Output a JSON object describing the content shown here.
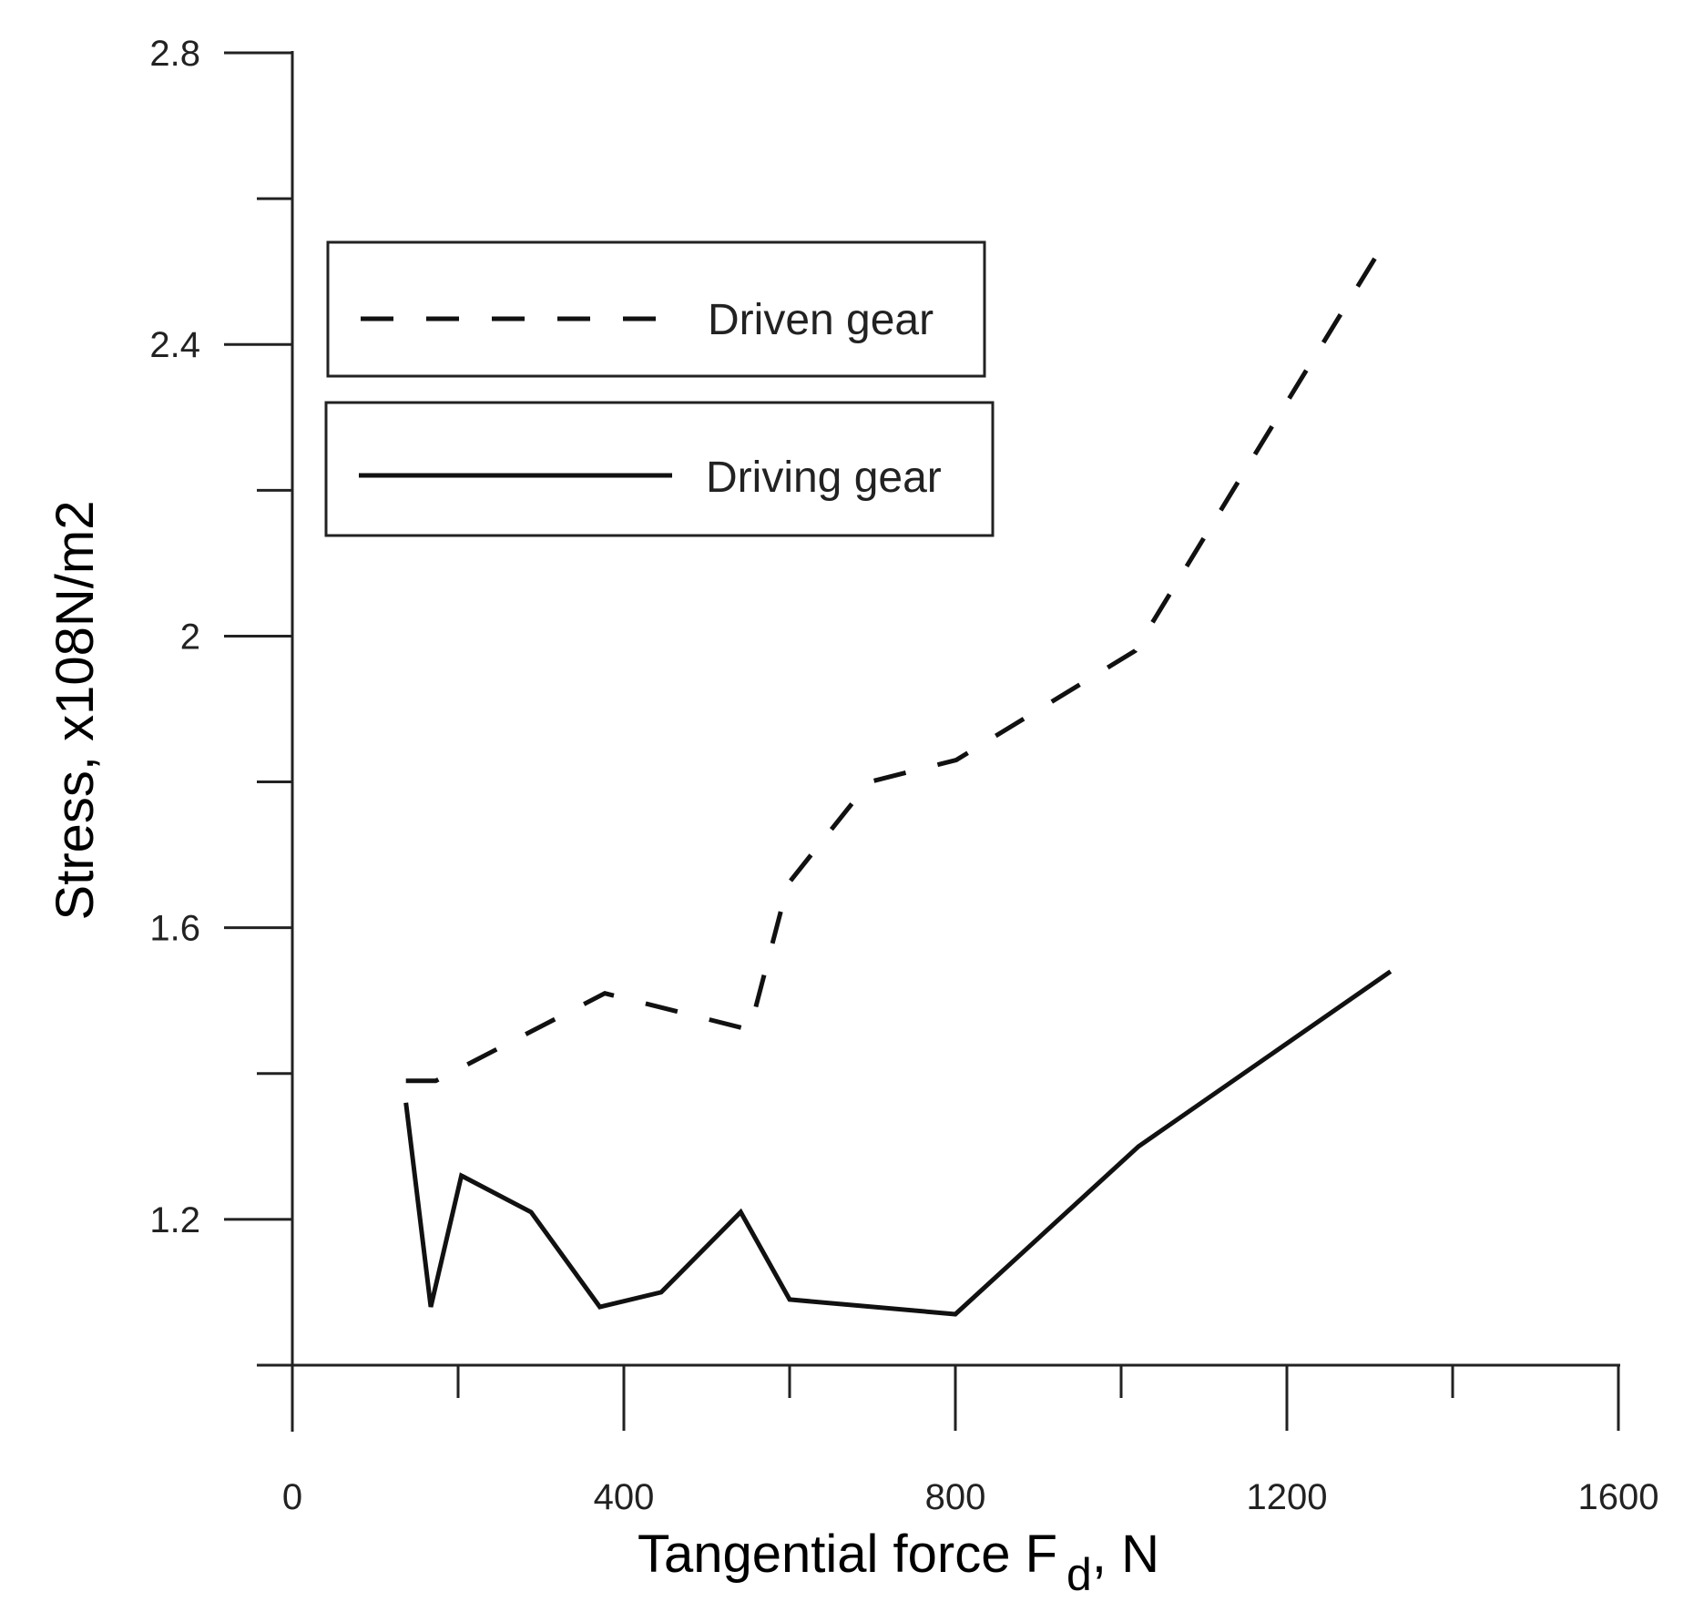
{
  "chart_data": {
    "type": "line",
    "title": "",
    "xlabel": "Tangential force F d, N",
    "xlabel_main": "Tangential force F",
    "xlabel_sub": "d",
    "xlabel_tail": ", N",
    "ylabel": "Stress, x108N/m2",
    "xlim": [
      0,
      1600
    ],
    "ylim": [
      1.0,
      2.8
    ],
    "x_ticks": [
      0,
      400,
      800,
      1200,
      1600
    ],
    "x_tick_labels": [
      "0",
      "400",
      "800",
      "1200",
      "1600"
    ],
    "x_minor_ticks": [
      200,
      600,
      1000,
      1400
    ],
    "y_ticks": [
      1.2,
      1.6,
      2.0,
      2.4,
      2.8
    ],
    "y_tick_labels": [
      "1.2",
      "1.6",
      "2",
      "2.4",
      "2.8"
    ],
    "y_minor_ticks": [
      1.0,
      1.4,
      1.8,
      2.2,
      2.6
    ],
    "grid": false,
    "legend_position": "upper-left",
    "series": [
      {
        "name": "Driven gear",
        "style": "dashed",
        "x": [
          137,
          173,
          377,
          552,
          598,
          696,
          801,
          1017,
          1135,
          1318
        ],
        "y": [
          1.39,
          1.39,
          1.51,
          1.46,
          1.66,
          1.8,
          1.83,
          1.98,
          2.2,
          2.54
        ]
      },
      {
        "name": "Driving gear",
        "style": "solid",
        "x": [
          137,
          167,
          204,
          288,
          371,
          445,
          541,
          600,
          800,
          1021,
          1325
        ],
        "y": [
          1.36,
          1.08,
          1.26,
          1.21,
          1.08,
          1.1,
          1.21,
          1.09,
          1.07,
          1.3,
          1.54
        ]
      }
    ]
  },
  "legend": {
    "items": [
      {
        "label": "Driven gear",
        "style": "dashed"
      },
      {
        "label": "Driving gear",
        "style": "solid"
      }
    ]
  },
  "colors": {
    "line": "#111111",
    "axis": "#222222",
    "background": "#ffffff"
  }
}
